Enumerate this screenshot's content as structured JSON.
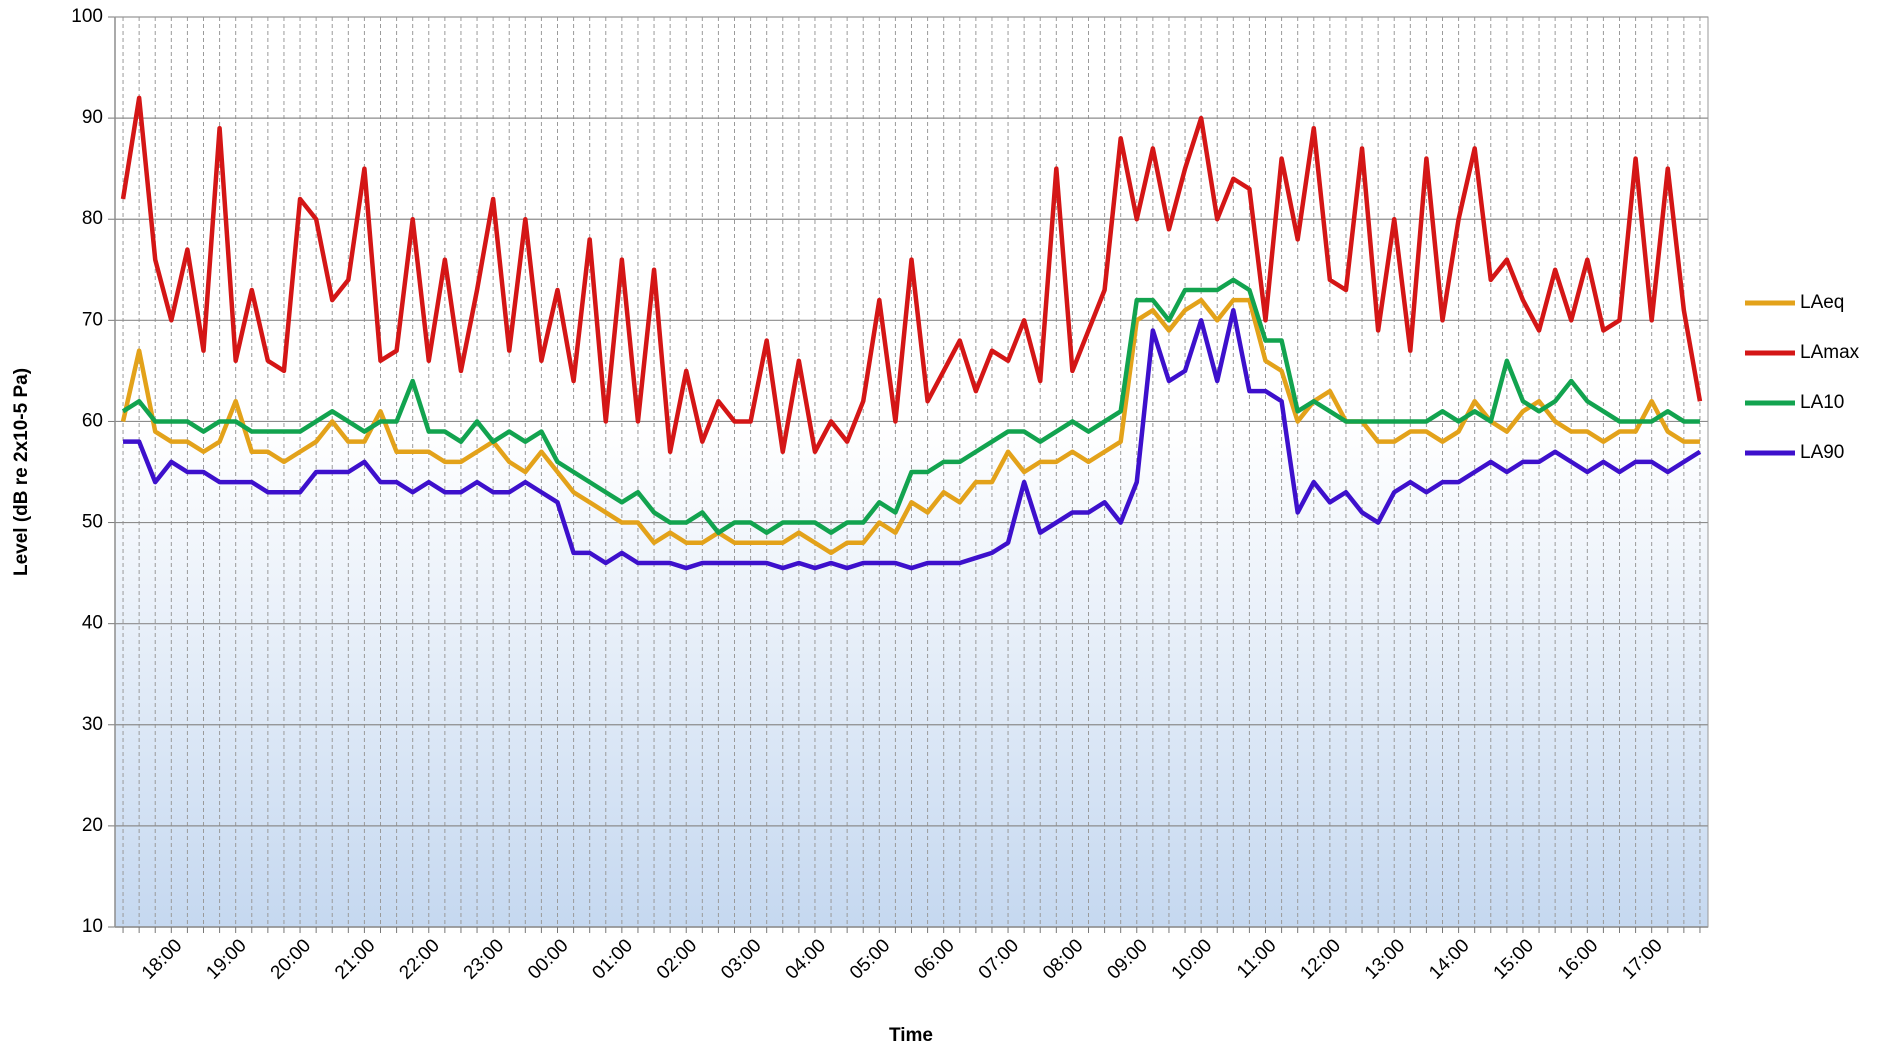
{
  "chart_data": {
    "type": "line",
    "x_label": "Time",
    "y_label": "Level (dB re 2x10-5 Pa)",
    "categories": [
      null,
      null,
      null,
      "18:00",
      null,
      null,
      null,
      "19:00",
      null,
      null,
      null,
      "20:00",
      null,
      null,
      null,
      "21:00",
      null,
      null,
      null,
      "22:00",
      null,
      null,
      null,
      "23:00",
      null,
      null,
      null,
      "00:00",
      null,
      null,
      null,
      "01:00",
      null,
      null,
      null,
      "02:00",
      null,
      null,
      null,
      "03:00",
      null,
      null,
      null,
      "04:00",
      null,
      null,
      null,
      "05:00",
      null,
      null,
      null,
      "06:00",
      null,
      null,
      null,
      "07:00",
      null,
      null,
      null,
      "08:00",
      null,
      null,
      null,
      "09:00",
      null,
      null,
      null,
      "10:00",
      null,
      null,
      null,
      "11:00",
      null,
      null,
      null,
      "12:00",
      null,
      null,
      null,
      "13:00",
      null,
      null,
      null,
      "14:00",
      null,
      null,
      null,
      "15:00",
      null,
      null,
      null,
      "16:00",
      null,
      null,
      null,
      "17:00",
      null,
      null,
      null
    ],
    "series": [
      {
        "name": "LAeq",
        "color": "#e3a21a",
        "values": [
          60,
          67,
          59,
          58,
          58,
          57,
          58,
          62,
          57,
          57,
          56,
          57,
          58,
          60,
          58,
          58,
          61,
          57,
          57,
          57,
          56,
          56,
          57,
          58,
          56,
          55,
          57,
          55,
          53,
          52,
          51,
          50,
          50,
          48,
          49,
          48,
          48,
          49,
          48,
          48,
          48,
          48,
          49,
          48,
          47,
          48,
          48,
          50,
          49,
          52,
          51,
          53,
          52,
          54,
          54,
          57,
          55,
          56,
          56,
          57,
          56,
          57,
          58,
          70,
          71,
          69,
          71,
          72,
          70,
          72,
          72,
          66,
          65,
          60,
          62,
          63,
          60,
          60,
          58,
          58,
          59,
          59,
          58,
          59,
          62,
          60,
          59,
          61,
          62,
          60,
          59,
          59,
          58,
          59,
          59,
          62,
          59,
          58,
          58
        ]
      },
      {
        "name": "LAmax",
        "color": "#d41616",
        "values": [
          82,
          92,
          76,
          70,
          77,
          67,
          89,
          66,
          73,
          66,
          65,
          82,
          80,
          72,
          74,
          85,
          66,
          67,
          80,
          66,
          76,
          65,
          73,
          82,
          67,
          80,
          66,
          73,
          64,
          78,
          60,
          76,
          60,
          75,
          57,
          65,
          58,
          62,
          60,
          60,
          68,
          57,
          66,
          57,
          60,
          58,
          62,
          72,
          60,
          76,
          62,
          65,
          68,
          63,
          67,
          66,
          70,
          64,
          85,
          65,
          69,
          73,
          88,
          80,
          87,
          79,
          85,
          90,
          80,
          84,
          83,
          70,
          86,
          78,
          89,
          74,
          73,
          87,
          69,
          80,
          67,
          86,
          70,
          80,
          87,
          74,
          76,
          72,
          69,
          75,
          70,
          76,
          69,
          70,
          86,
          70,
          85,
          71,
          62
        ]
      },
      {
        "name": "LA10",
        "color": "#12a34f",
        "values": [
          61,
          62,
          60,
          60,
          60,
          59,
          60,
          60,
          59,
          59,
          59,
          59,
          60,
          61,
          60,
          59,
          60,
          60,
          64,
          59,
          59,
          58,
          60,
          58,
          59,
          58,
          59,
          56,
          55,
          54,
          53,
          52,
          53,
          51,
          50,
          50,
          51,
          49,
          50,
          50,
          49,
          50,
          50,
          50,
          49,
          50,
          50,
          52,
          51,
          55,
          55,
          56,
          56,
          57,
          58,
          59,
          59,
          58,
          59,
          60,
          59,
          60,
          61,
          72,
          72,
          70,
          73,
          73,
          73,
          74,
          73,
          68,
          68,
          61,
          62,
          61,
          60,
          60,
          60,
          60,
          60,
          60,
          61,
          60,
          61,
          60,
          66,
          62,
          61,
          62,
          64,
          62,
          61,
          60,
          60,
          60,
          61,
          60,
          60
        ]
      },
      {
        "name": "LA90",
        "color": "#3d10cc",
        "values": [
          58,
          58,
          54,
          56,
          55,
          55,
          54,
          54,
          54,
          53,
          53,
          53,
          55,
          55,
          55,
          56,
          54,
          54,
          53,
          54,
          53,
          53,
          54,
          53,
          53,
          54,
          53,
          52,
          47,
          47,
          46,
          47,
          46,
          46,
          46,
          45.5,
          46,
          46,
          46,
          46,
          46,
          45.5,
          46,
          45.5,
          46,
          45.5,
          46,
          46,
          46,
          45.5,
          46,
          46,
          46,
          46.5,
          47,
          48,
          54,
          49,
          50,
          51,
          51,
          52,
          50,
          54,
          69,
          64,
          65,
          70,
          64,
          71,
          63,
          63,
          62,
          51,
          54,
          52,
          53,
          51,
          50,
          53,
          54,
          53,
          54,
          54,
          55,
          56,
          55,
          56,
          56,
          57,
          56,
          55,
          56,
          55,
          56,
          56,
          55,
          56,
          57
        ]
      }
    ],
    "ylim": [
      10,
      100
    ],
    "yticks": [
      10,
      20,
      30,
      40,
      50,
      60,
      70,
      80,
      90,
      100
    ],
    "grid": true,
    "legend": "right"
  }
}
